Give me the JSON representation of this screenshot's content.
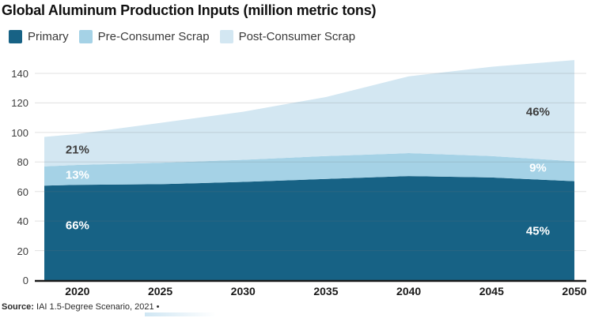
{
  "source": {
    "label": "Source:",
    "text": "IAI 1.5-Degree Scenario, 2021 •"
  },
  "chart_data": {
    "type": "area",
    "stacked": true,
    "title": "Global Aluminum Production Inputs (million metric tons)",
    "xlabel": "",
    "ylabel": "",
    "xlim": [
      2018,
      2050
    ],
    "ylim": [
      0,
      150
    ],
    "grid": "horizontal",
    "legend_position": "top-left",
    "x": [
      2018,
      2020,
      2025,
      2030,
      2035,
      2040,
      2045,
      2050
    ],
    "series": [
      {
        "name": "Primary",
        "color": "#176285",
        "values": [
          64,
          64.5,
          65,
          66.5,
          68.5,
          70.5,
          69.5,
          67
        ]
      },
      {
        "name": "Pre-Consumer Scrap",
        "color": "#a5d2e6",
        "values": [
          13,
          13.5,
          14.5,
          15,
          15.5,
          15.5,
          14.5,
          13.5
        ]
      },
      {
        "name": "Post-Consumer Scrap",
        "color": "#d3e7f2",
        "values": [
          20,
          21,
          27,
          32.5,
          40,
          52,
          60.5,
          68.5
        ]
      }
    ],
    "xticks": [
      2020,
      2025,
      2030,
      2035,
      2040,
      2045,
      2050
    ],
    "yticks": [
      0,
      20,
      40,
      60,
      80,
      100,
      120,
      140
    ],
    "annotations": [
      {
        "text": "66%",
        "year": 2020,
        "value": 37,
        "color": "#ffffff"
      },
      {
        "text": "13%",
        "year": 2020,
        "value": 71,
        "color": "#ffffff"
      },
      {
        "text": "21%",
        "year": 2020,
        "value": 88,
        "color": "#3d3d3d"
      },
      {
        "text": "45%",
        "year": 2047.8,
        "value": 33,
        "color": "#ffffff"
      },
      {
        "text": "9%",
        "year": 2047.8,
        "value": 76,
        "color": "#ffffff"
      },
      {
        "text": "46%",
        "year": 2047.8,
        "value": 114,
        "color": "#3d3d3d"
      }
    ]
  }
}
